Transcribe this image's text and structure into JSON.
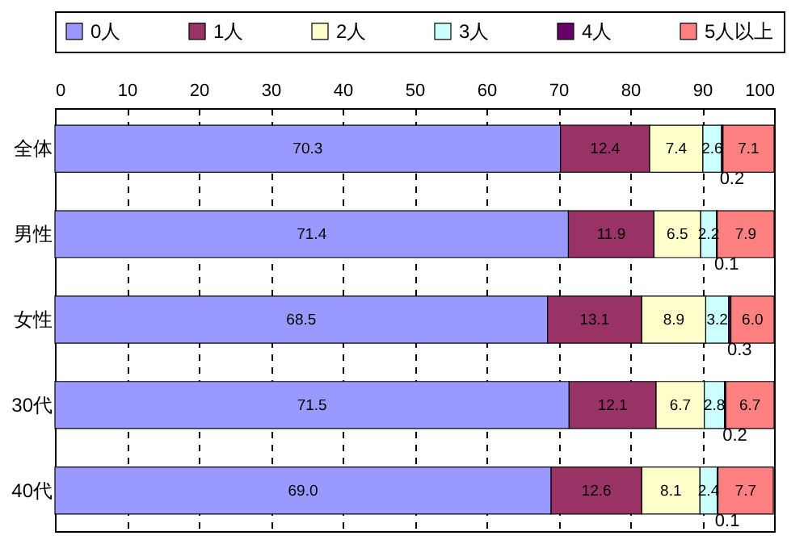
{
  "chart_data": {
    "type": "bar",
    "orientation": "horizontal",
    "stacked": true,
    "categories": [
      "全体",
      "男性",
      "女性",
      "30代",
      "40代"
    ],
    "series": [
      {
        "name": "0人",
        "color": "#9999ff",
        "values": [
          70.3,
          71.4,
          68.5,
          71.5,
          69.0
        ],
        "value_labels": [
          "70.3",
          "71.4",
          "68.5",
          "71.5",
          "69.0"
        ]
      },
      {
        "name": "1人",
        "color": "#993366",
        "values": [
          12.4,
          11.9,
          13.1,
          12.1,
          12.6
        ],
        "value_labels": [
          "12.4",
          "11.9",
          "13.1",
          "12.1",
          "12.6"
        ]
      },
      {
        "name": "2人",
        "color": "#ffffcc",
        "values": [
          7.4,
          6.5,
          8.9,
          6.7,
          8.1
        ],
        "value_labels": [
          "7.4",
          "6.5",
          "8.9",
          "6.7",
          "8.1"
        ]
      },
      {
        "name": "3人",
        "color": "#ccffff",
        "values": [
          2.6,
          2.2,
          3.2,
          2.8,
          2.4
        ],
        "value_labels": [
          "2.6",
          "2.2",
          "3.2",
          "2.8",
          "2.4"
        ]
      },
      {
        "name": "4人",
        "color": "#660066",
        "values": [
          0.2,
          0.1,
          0.3,
          0.2,
          0.1
        ],
        "value_labels": [
          "0.2",
          "0.1",
          "0.3",
          "0.2",
          "0.1"
        ]
      },
      {
        "name": "5人以上",
        "color": "#ff8080",
        "values": [
          7.1,
          7.9,
          6.0,
          6.7,
          7.7
        ],
        "value_labels": [
          "7.1",
          "7.9",
          "6.0",
          "6.7",
          "7.7"
        ]
      }
    ],
    "xlim": [
      0,
      100
    ],
    "xticks": [
      0,
      10,
      20,
      30,
      40,
      50,
      60,
      70,
      80,
      90,
      100
    ],
    "grid": "x",
    "legend": "top"
  }
}
